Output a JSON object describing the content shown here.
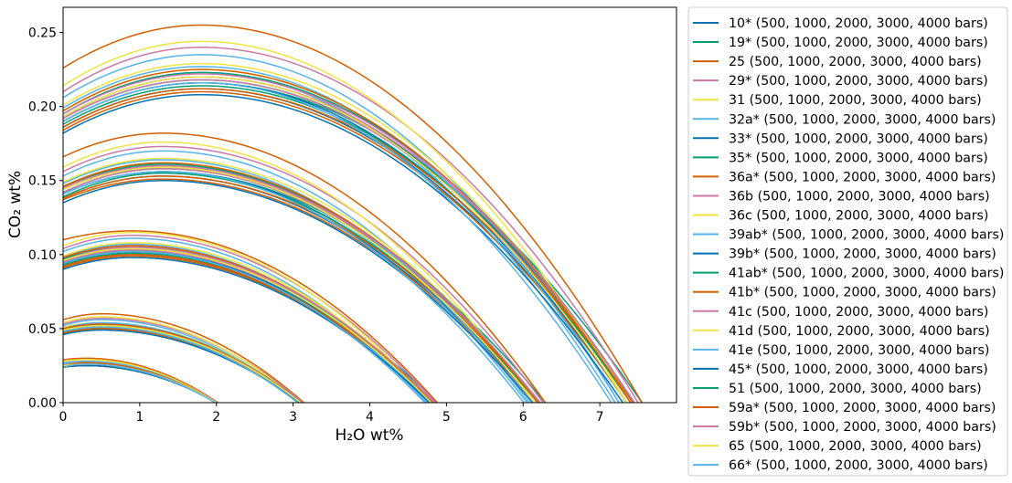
{
  "chart_data": {
    "type": "line",
    "xlabel": "H₂O wt%",
    "ylabel": "CO₂ wt%",
    "xlim": [
      0,
      8
    ],
    "ylim": [
      0,
      0.267
    ],
    "xticks": [
      "0",
      "1",
      "2",
      "3",
      "4",
      "5",
      "6",
      "7"
    ],
    "yticks": [
      "0.00",
      "0.05",
      "0.10",
      "0.15",
      "0.20",
      "0.25"
    ],
    "grid": false,
    "legend_position": "outside-right",
    "curve_format": "each isobar given as [CO2 at H2O=0, H2O at max CO2, max CO2, H2O where CO2=0]",
    "pressures_bars": [
      500,
      1000,
      2000,
      3000,
      4000
    ],
    "palette": [
      "#0072B2",
      "#009E73",
      "#D55E00",
      "#CC79A7",
      "#F0E442",
      "#56B4E9"
    ],
    "series": [
      {
        "name": "10* (500, 1000, 2000, 3000, 4000 bars)",
        "isobars": [
          [
            0.024,
            0.3,
            0.025,
            2.0
          ],
          [
            0.047,
            0.5,
            0.05,
            3.1
          ],
          [
            0.092,
            0.9,
            0.1,
            4.8
          ],
          [
            0.138,
            1.3,
            0.153,
            6.15
          ],
          [
            0.186,
            1.8,
            0.212,
            7.35
          ]
        ]
      },
      {
        "name": "19* (500, 1000, 2000, 3000, 4000 bars)",
        "isobars": [
          [
            0.024,
            0.3,
            0.026,
            2.02
          ],
          [
            0.048,
            0.5,
            0.051,
            3.14
          ],
          [
            0.094,
            0.9,
            0.102,
            4.88
          ],
          [
            0.141,
            1.3,
            0.156,
            6.29
          ],
          [
            0.19,
            1.8,
            0.216,
            7.55
          ]
        ]
      },
      {
        "name": "25 (500, 1000, 2000, 3000, 4000 bars)",
        "isobars": [
          [
            0.029,
            0.3,
            0.03,
            2.02
          ],
          [
            0.056,
            0.5,
            0.06,
            3.14
          ],
          [
            0.11,
            0.9,
            0.116,
            4.88
          ],
          [
            0.166,
            1.3,
            0.182,
            6.29
          ],
          [
            0.226,
            1.8,
            0.255,
            7.55
          ]
        ]
      },
      {
        "name": "29* (500, 1000, 2000, 3000, 4000 bars)",
        "isobars": [
          [
            0.027,
            0.3,
            0.028,
            2.02
          ],
          [
            0.053,
            0.5,
            0.057,
            3.13
          ],
          [
            0.104,
            0.9,
            0.113,
            4.86
          ],
          [
            0.156,
            1.3,
            0.173,
            6.26
          ],
          [
            0.21,
            1.8,
            0.24,
            7.5
          ]
        ]
      },
      {
        "name": "31 (500, 1000, 2000, 3000, 4000 bars)",
        "isobars": [
          [
            0.028,
            0.3,
            0.029,
            2.0
          ],
          [
            0.054,
            0.5,
            0.058,
            3.1
          ],
          [
            0.106,
            0.9,
            0.115,
            4.8
          ],
          [
            0.159,
            1.3,
            0.176,
            6.15
          ],
          [
            0.214,
            1.8,
            0.244,
            7.35
          ]
        ]
      },
      {
        "name": "32a* (500, 1000, 2000, 3000, 4000 bars)",
        "isobars": [
          [
            0.027,
            0.3,
            0.028,
            1.99
          ],
          [
            0.052,
            0.5,
            0.056,
            3.08
          ],
          [
            0.102,
            0.9,
            0.111,
            4.76
          ],
          [
            0.153,
            1.3,
            0.17,
            6.08
          ],
          [
            0.206,
            1.8,
            0.235,
            7.25
          ]
        ]
      },
      {
        "name": "33* (500, 1000, 2000, 3000, 4000 bars)",
        "isobars": [
          [
            0.025,
            0.3,
            0.026,
            2.0
          ],
          [
            0.049,
            0.5,
            0.052,
            3.11
          ],
          [
            0.096,
            0.9,
            0.104,
            4.82
          ],
          [
            0.144,
            1.3,
            0.159,
            6.19
          ],
          [
            0.193,
            1.8,
            0.22,
            7.4
          ]
        ]
      },
      {
        "name": "35* (500, 1000, 2000, 3000, 4000 bars)",
        "isobars": [
          [
            0.025,
            0.3,
            0.026,
            2.01
          ],
          [
            0.048,
            0.5,
            0.052,
            3.12
          ],
          [
            0.095,
            0.9,
            0.103,
            4.84
          ],
          [
            0.142,
            1.3,
            0.158,
            6.22
          ],
          [
            0.192,
            1.8,
            0.218,
            7.45
          ]
        ]
      },
      {
        "name": "36a* (500, 1000, 2000, 3000, 4000 bars)",
        "isobars": [
          [
            0.024,
            0.3,
            0.025,
            2.0
          ],
          [
            0.046,
            0.5,
            0.05,
            3.1
          ],
          [
            0.091,
            0.9,
            0.099,
            4.8
          ],
          [
            0.137,
            1.3,
            0.151,
            6.15
          ],
          [
            0.184,
            1.8,
            0.21,
            7.35
          ]
        ]
      },
      {
        "name": "36b (500, 1000, 2000, 3000, 4000 bars)",
        "isobars": [
          [
            0.025,
            0.3,
            0.026,
            2.0
          ],
          [
            0.048,
            0.5,
            0.052,
            3.11
          ],
          [
            0.095,
            0.9,
            0.103,
            4.82
          ],
          [
            0.142,
            1.3,
            0.158,
            6.19
          ],
          [
            0.192,
            1.8,
            0.218,
            7.4
          ]
        ]
      },
      {
        "name": "36c (500, 1000, 2000, 3000, 4000 bars)",
        "isobars": [
          [
            0.025,
            0.3,
            0.027,
            2.0
          ],
          [
            0.05,
            0.5,
            0.053,
            3.11
          ],
          [
            0.098,
            0.9,
            0.106,
            4.82
          ],
          [
            0.146,
            1.3,
            0.162,
            6.19
          ],
          [
            0.197,
            1.8,
            0.225,
            7.4
          ]
        ]
      },
      {
        "name": "39ab* (500, 1000, 2000, 3000, 4000 bars)",
        "isobars": [
          [
            0.025,
            0.3,
            0.026,
            1.99
          ],
          [
            0.049,
            0.5,
            0.053,
            3.07
          ],
          [
            0.097,
            0.9,
            0.105,
            4.74
          ],
          [
            0.145,
            1.3,
            0.161,
            6.05
          ],
          [
            0.195,
            1.8,
            0.223,
            7.2
          ]
        ]
      },
      {
        "name": "39b* (500, 1000, 2000, 3000, 4000 bars)",
        "isobars": [
          [
            0.024,
            0.3,
            0.026,
            2.0
          ],
          [
            0.048,
            0.5,
            0.051,
            3.1
          ],
          [
            0.094,
            0.9,
            0.102,
            4.8
          ],
          [
            0.141,
            1.3,
            0.156,
            6.15
          ],
          [
            0.19,
            1.8,
            0.216,
            7.35
          ]
        ]
      },
      {
        "name": "41ab* (500, 1000, 2000, 3000, 4000 bars)",
        "isobars": [
          [
            0.024,
            0.3,
            0.025,
            2.0
          ],
          [
            0.047,
            0.5,
            0.051,
            3.11
          ],
          [
            0.093,
            0.9,
            0.101,
            4.82
          ],
          [
            0.139,
            1.3,
            0.155,
            6.19
          ],
          [
            0.188,
            1.8,
            0.214,
            7.4
          ]
        ]
      },
      {
        "name": "41b* (500, 1000, 2000, 3000, 4000 bars)",
        "isobars": [
          [
            0.024,
            0.3,
            0.025,
            2.01
          ],
          [
            0.047,
            0.5,
            0.05,
            3.12
          ],
          [
            0.092,
            0.9,
            0.1,
            4.83
          ],
          [
            0.138,
            1.3,
            0.153,
            6.21
          ],
          [
            0.186,
            1.8,
            0.212,
            7.43
          ]
        ]
      },
      {
        "name": "41c (500, 1000, 2000, 3000, 4000 bars)",
        "isobars": [
          [
            0.025,
            0.3,
            0.026,
            2.01
          ],
          [
            0.049,
            0.5,
            0.052,
            3.12
          ],
          [
            0.096,
            0.9,
            0.104,
            4.84
          ],
          [
            0.144,
            1.3,
            0.159,
            6.22
          ],
          [
            0.193,
            1.8,
            0.22,
            7.45
          ]
        ]
      },
      {
        "name": "41d (500, 1000, 2000, 3000, 4000 bars)",
        "isobars": [
          [
            0.026,
            0.3,
            0.027,
            2.0
          ],
          [
            0.051,
            0.5,
            0.054,
            3.11
          ],
          [
            0.099,
            0.9,
            0.108,
            4.82
          ],
          [
            0.149,
            1.3,
            0.165,
            6.19
          ],
          [
            0.201,
            1.8,
            0.229,
            7.4
          ]
        ]
      },
      {
        "name": "41e (500, 1000, 2000, 3000, 4000 bars)",
        "isobars": [
          [
            0.026,
            0.3,
            0.027,
            1.99
          ],
          [
            0.05,
            0.5,
            0.054,
            3.08
          ],
          [
            0.098,
            0.9,
            0.107,
            4.76
          ],
          [
            0.148,
            1.3,
            0.164,
            6.08
          ],
          [
            0.199,
            1.8,
            0.227,
            7.25
          ]
        ]
      },
      {
        "name": "45* (500, 1000, 2000, 3000, 4000 bars)",
        "isobars": [
          [
            0.024,
            0.3,
            0.025,
            2.0
          ],
          [
            0.046,
            0.5,
            0.049,
            3.09
          ],
          [
            0.09,
            0.9,
            0.098,
            4.78
          ],
          [
            0.135,
            1.3,
            0.15,
            6.12
          ],
          [
            0.182,
            1.8,
            0.208,
            7.3
          ]
        ]
      },
      {
        "name": "51 (500, 1000, 2000, 3000, 4000 bars)",
        "isobars": [
          [
            0.025,
            0.3,
            0.026,
            2.01
          ],
          [
            0.049,
            0.5,
            0.053,
            3.12
          ],
          [
            0.097,
            0.9,
            0.105,
            4.84
          ],
          [
            0.145,
            1.3,
            0.161,
            6.22
          ],
          [
            0.195,
            1.8,
            0.223,
            7.45
          ]
        ]
      },
      {
        "name": "59a* (500, 1000, 2000, 3000, 4000 bars)",
        "isobars": [
          [
            0.025,
            0.3,
            0.027,
            2.0
          ],
          [
            0.05,
            0.5,
            0.053,
            3.11
          ],
          [
            0.098,
            0.9,
            0.106,
            4.82
          ],
          [
            0.146,
            1.3,
            0.162,
            6.19
          ],
          [
            0.197,
            1.8,
            0.225,
            7.4
          ]
        ]
      },
      {
        "name": "59b* (500, 1000, 2000, 3000, 4000 bars)",
        "isobars": [
          [
            0.025,
            0.3,
            0.026,
            2.01
          ],
          [
            0.049,
            0.5,
            0.052,
            3.12
          ],
          [
            0.096,
            0.9,
            0.105,
            4.84
          ],
          [
            0.145,
            1.3,
            0.16,
            6.22
          ],
          [
            0.195,
            1.8,
            0.222,
            7.45
          ]
        ]
      },
      {
        "name": "65 (500, 1000, 2000, 3000, 4000 bars)",
        "isobars": [
          [
            0.025,
            0.3,
            0.026,
            2.0
          ],
          [
            0.049,
            0.5,
            0.052,
            3.1
          ],
          [
            0.096,
            0.9,
            0.104,
            4.8
          ],
          [
            0.144,
            1.3,
            0.159,
            6.15
          ],
          [
            0.193,
            1.8,
            0.22,
            7.35
          ]
        ]
      },
      {
        "name": "66* (500, 1000, 2000, 3000, 4000 bars)",
        "isobars": [
          [
            0.024,
            0.3,
            0.026,
            1.98
          ],
          [
            0.048,
            0.5,
            0.051,
            3.06
          ],
          [
            0.094,
            0.9,
            0.102,
            4.72
          ],
          [
            0.141,
            1.3,
            0.156,
            6.01
          ],
          [
            0.19,
            1.8,
            0.216,
            7.15
          ]
        ]
      }
    ]
  }
}
